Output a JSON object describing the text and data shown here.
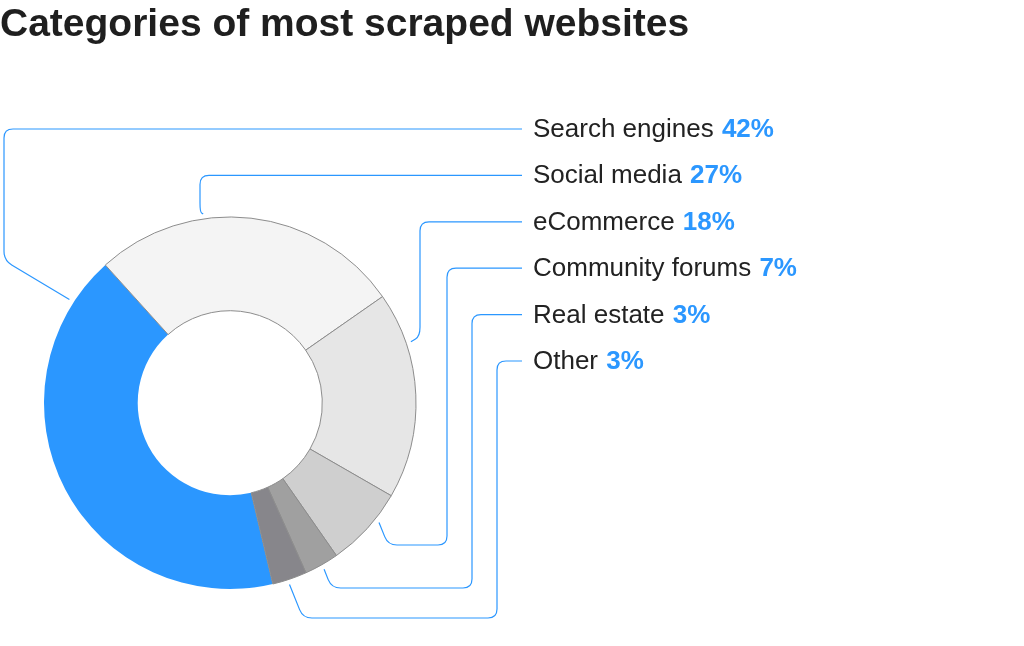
{
  "chart_data": {
    "type": "donut",
    "title": "Categories of most scraped websites",
    "categories": [
      "Search engines",
      "Social media",
      "eCommerce",
      "Community forums",
      "Real estate",
      "Other"
    ],
    "values": [
      42,
      27,
      18,
      7,
      3,
      3
    ],
    "colors": [
      "#2b97ff",
      "#f4f4f4",
      "#e6e6e6",
      "#cfcfcf",
      "#a0a0a0",
      "#87868b"
    ],
    "value_labels": [
      "42%",
      "27%",
      "18%",
      "7%",
      "3%",
      "3%"
    ]
  }
}
